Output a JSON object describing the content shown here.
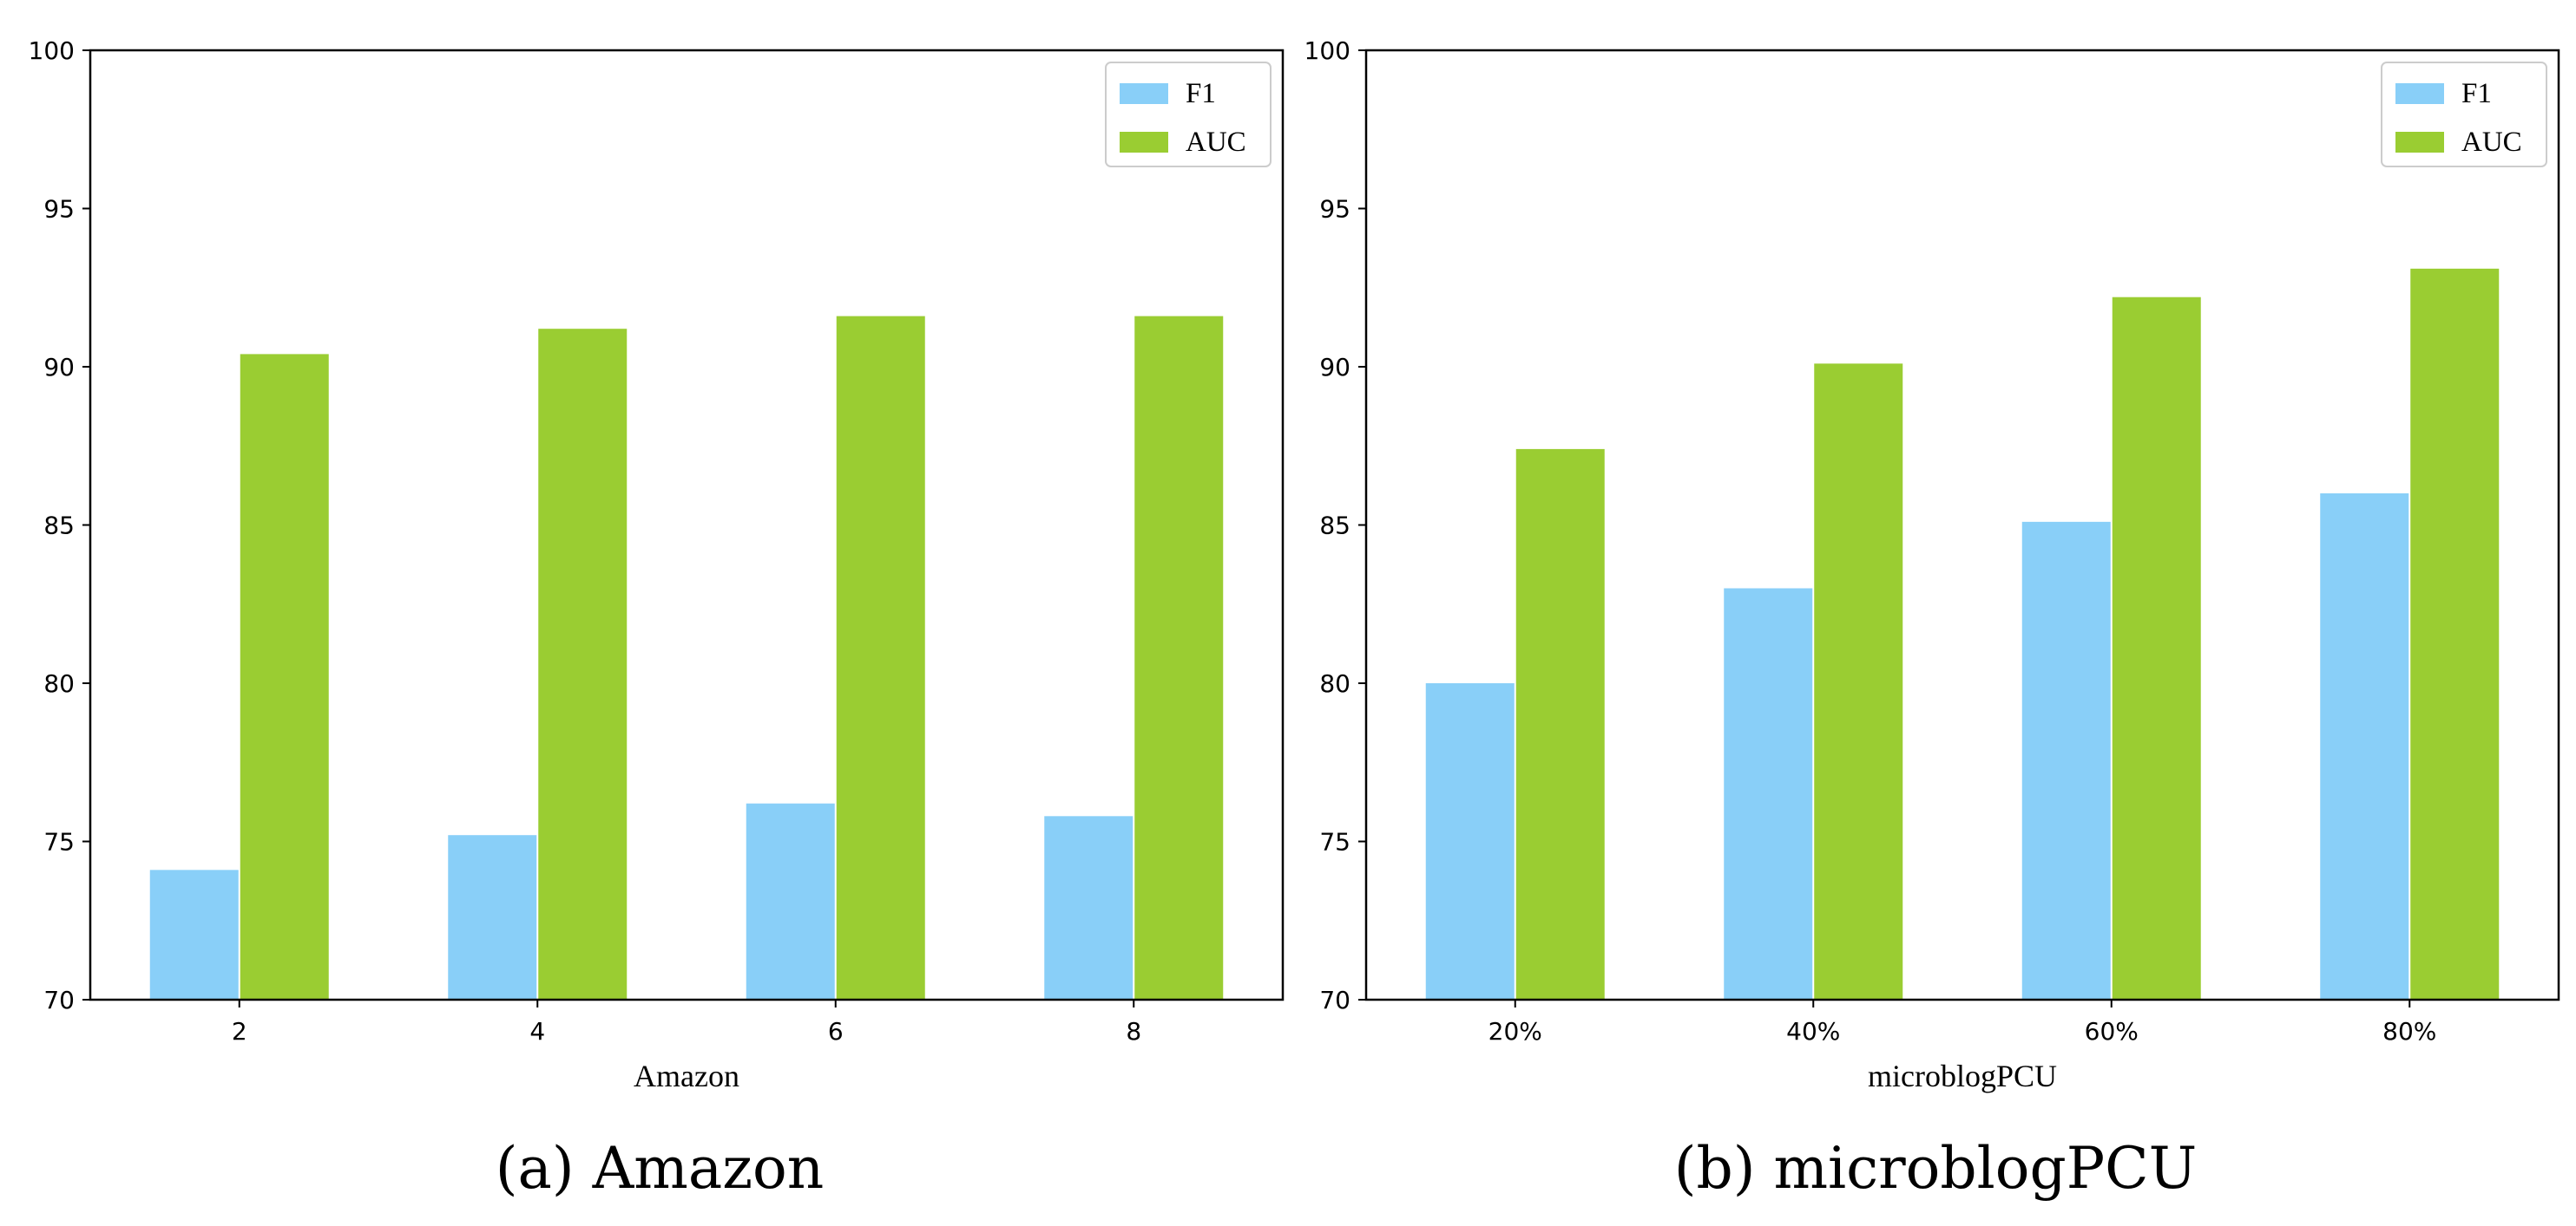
{
  "chart_data": [
    {
      "type": "bar",
      "panel": "a",
      "categories": [
        "2",
        "4",
        "6",
        "8"
      ],
      "series": [
        {
          "name": "F1",
          "color": "#89CFF8",
          "values": [
            74.1,
            75.2,
            76.2,
            75.8
          ]
        },
        {
          "name": "AUC",
          "color": "#9ACD32",
          "values": [
            90.4,
            91.2,
            91.6,
            91.6
          ]
        }
      ],
      "xlabel": "Amazon",
      "ylabel": "",
      "ylim": [
        70,
        100
      ],
      "yticks": [
        "70",
        "75",
        "80",
        "85",
        "90",
        "95",
        "100"
      ],
      "legend_position": "top-right",
      "grid": false,
      "caption_letter": "(a)",
      "caption_text": "Amazon"
    },
    {
      "type": "bar",
      "panel": "b",
      "categories": [
        "20%",
        "40%",
        "60%",
        "80%"
      ],
      "series": [
        {
          "name": "F1",
          "color": "#89CFF8",
          "values": [
            80.0,
            83.0,
            85.1,
            86.0
          ]
        },
        {
          "name": "AUC",
          "color": "#9ACD32",
          "values": [
            87.4,
            90.1,
            92.2,
            93.1
          ]
        }
      ],
      "xlabel": "microblogPCU",
      "ylabel": "",
      "ylim": [
        70,
        100
      ],
      "yticks": [
        "70",
        "75",
        "80",
        "85",
        "90",
        "95",
        "100"
      ],
      "legend_position": "top-right",
      "grid": false,
      "caption_letter": "(b)",
      "caption_text": "microblogPCU"
    }
  ]
}
